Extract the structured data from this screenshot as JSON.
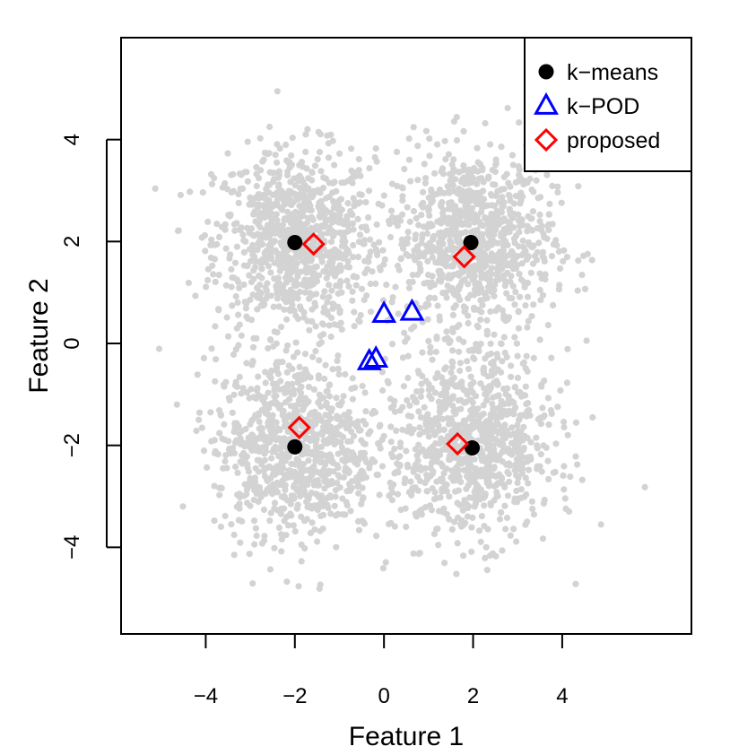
{
  "chart_data": {
    "type": "scatter",
    "title": "",
    "xlabel": "Feature 1",
    "ylabel": "Feature 2",
    "xlim": [
      -5.9,
      6.9
    ],
    "ylim": [
      -5.7,
      6.0
    ],
    "xticks": [
      -4,
      -2,
      0,
      2,
      4
    ],
    "xtick_labels": [
      "−4",
      "−2",
      "0",
      "2",
      "4"
    ],
    "yticks": [
      -4,
      -2,
      0,
      2,
      4
    ],
    "ytick_labels": [
      "−4",
      "−2",
      "0",
      "2",
      "4"
    ],
    "grid": false,
    "legend_position": "top-right",
    "background_cloud": {
      "description_of_data": "four gaussian clusters of gray points",
      "color": "#d3d3d3",
      "cluster_centers": [
        [
          -2,
          2
        ],
        [
          2,
          2
        ],
        [
          -2,
          -2
        ],
        [
          2,
          -2
        ]
      ],
      "spread_sd": 0.9
    },
    "series": [
      {
        "name": "k−means",
        "marker": "filled-circle",
        "color": "#000000",
        "x": [
          -2.0,
          1.95,
          -2.0,
          1.98
        ],
        "y": [
          1.98,
          1.98,
          -2.03,
          -2.05
        ]
      },
      {
        "name": "k−POD",
        "marker": "open-triangle",
        "color": "#0000ff",
        "x": [
          0.0,
          0.63,
          -0.33,
          -0.18
        ],
        "y": [
          0.58,
          0.62,
          -0.35,
          -0.3
        ]
      },
      {
        "name": "proposed",
        "marker": "open-diamond",
        "color": "#ff0000",
        "x": [
          -1.58,
          1.8,
          -1.9,
          1.65
        ],
        "y": [
          1.95,
          1.7,
          -1.65,
          -1.97
        ]
      }
    ]
  }
}
